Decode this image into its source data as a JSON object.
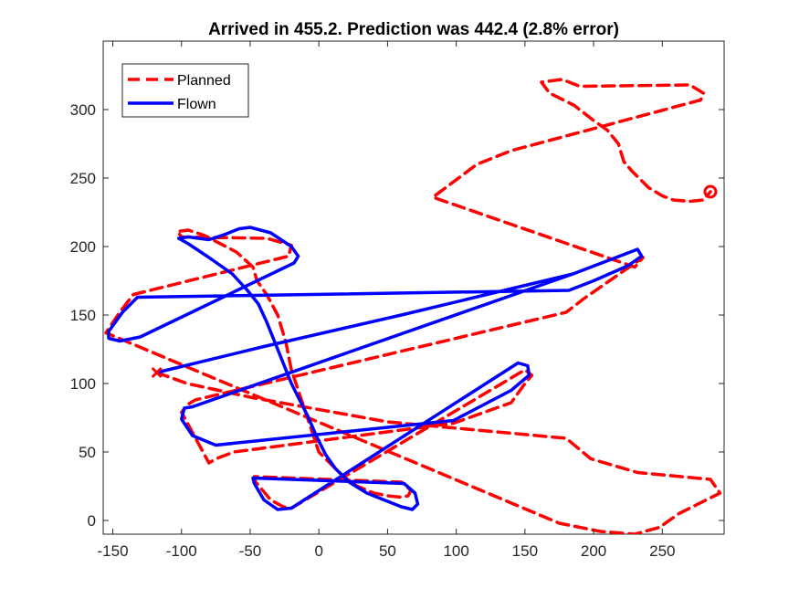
{
  "chart_data": {
    "type": "line",
    "title": "Arrived in 455.2.  Prediction was 442.4 (2.8% error)",
    "xlim": [
      -157,
      295
    ],
    "ylim": [
      -10,
      350
    ],
    "xticks": [
      -150,
      -100,
      -50,
      0,
      50,
      100,
      150,
      200,
      250
    ],
    "yticks": [
      0,
      50,
      100,
      150,
      200,
      250,
      300
    ],
    "legend_placement": "top-left",
    "grid": false,
    "series": [
      {
        "name": "Planned",
        "color": "#ff0000",
        "style": "dashed",
        "points": [
          [
            -118,
            108
          ],
          [
            -96,
            100
          ],
          [
            -50,
            90
          ],
          [
            50,
            72
          ],
          [
            180,
            60
          ],
          [
            198,
            45
          ],
          [
            232,
            35
          ],
          [
            285,
            30
          ],
          [
            292,
            20
          ],
          [
            262,
            5
          ],
          [
            248,
            -5
          ],
          [
            230,
            -10
          ],
          [
            205,
            -8
          ],
          [
            175,
            -2
          ],
          [
            -155,
            137
          ],
          [
            -145,
            152
          ],
          [
            -135,
            165
          ],
          [
            -22,
            193
          ],
          [
            -20,
            201
          ],
          [
            -38,
            206
          ],
          [
            -100,
            207
          ],
          [
            -103,
            211
          ],
          [
            -95,
            212
          ],
          [
            -83,
            208
          ],
          [
            -60,
            196
          ],
          [
            -48,
            185
          ],
          [
            -45,
            175
          ],
          [
            -38,
            165
          ],
          [
            -30,
            150
          ],
          [
            -24,
            130
          ],
          [
            -20,
            110
          ],
          [
            -15,
            95
          ],
          [
            -10,
            80
          ],
          [
            -5,
            65
          ],
          [
            0,
            50
          ],
          [
            10,
            40
          ],
          [
            18,
            32
          ],
          [
            28,
            25
          ],
          [
            40,
            20
          ],
          [
            50,
            18
          ],
          [
            60,
            17
          ],
          [
            65,
            18
          ],
          [
            67,
            22
          ],
          [
            60,
            28
          ],
          [
            -47,
            32
          ],
          [
            -46,
            28
          ],
          [
            -35,
            15
          ],
          [
            -26,
            10
          ],
          [
            -20,
            9
          ],
          [
            150,
            110
          ],
          [
            155,
            106
          ],
          [
            150,
            100
          ],
          [
            140,
            86
          ],
          [
            98,
            71
          ],
          [
            -62,
            50
          ],
          [
            -75,
            45
          ],
          [
            -80,
            42
          ],
          [
            -100,
            79
          ],
          [
            -95,
            85
          ],
          [
            -90,
            88
          ],
          [
            180,
            152
          ],
          [
            193,
            162
          ],
          [
            236,
            192
          ],
          [
            230,
            185
          ],
          [
            83,
            236
          ],
          [
            95,
            245
          ],
          [
            115,
            260
          ],
          [
            140,
            270
          ],
          [
            278,
            307
          ],
          [
            280,
            312
          ],
          [
            270,
            318
          ],
          [
            190,
            317
          ],
          [
            177,
            322
          ],
          [
            162,
            320
          ],
          [
            168,
            312
          ],
          [
            186,
            303
          ],
          [
            200,
            292
          ],
          [
            210,
            285
          ],
          [
            218,
            275
          ],
          [
            222,
            262
          ],
          [
            228,
            255
          ],
          [
            240,
            243
          ],
          [
            250,
            237
          ],
          [
            258,
            234
          ],
          [
            270,
            233
          ],
          [
            280,
            234
          ],
          [
            285,
            240
          ]
        ]
      },
      {
        "name": "Flown",
        "color": "#0000ff",
        "style": "solid",
        "points": [
          [
            -118,
            108
          ],
          [
            -40,
            127
          ],
          [
            60,
            150
          ],
          [
            185,
            180
          ],
          [
            232,
            198
          ],
          [
            235,
            193
          ],
          [
            225,
            186
          ],
          [
            200,
            175
          ],
          [
            182,
            168
          ],
          [
            -132,
            163
          ],
          [
            -143,
            152
          ],
          [
            -153,
            138
          ],
          [
            -153,
            133
          ],
          [
            -145,
            131
          ],
          [
            -130,
            134
          ],
          [
            -18,
            188
          ],
          [
            -15,
            193
          ],
          [
            -20,
            200
          ],
          [
            -35,
            210
          ],
          [
            -50,
            214
          ],
          [
            -58,
            213
          ],
          [
            -68,
            209
          ],
          [
            -80,
            205
          ],
          [
            -95,
            207
          ],
          [
            -102,
            206
          ],
          [
            -95,
            202
          ],
          [
            -80,
            192
          ],
          [
            -63,
            180
          ],
          [
            -52,
            168
          ],
          [
            -44,
            158
          ],
          [
            -38,
            145
          ],
          [
            -32,
            130
          ],
          [
            -26,
            115
          ],
          [
            -20,
            100
          ],
          [
            -14,
            88
          ],
          [
            -8,
            76
          ],
          [
            -2,
            62
          ],
          [
            5,
            48
          ],
          [
            12,
            38
          ],
          [
            22,
            28
          ],
          [
            35,
            20
          ],
          [
            50,
            14
          ],
          [
            60,
            10
          ],
          [
            68,
            8
          ],
          [
            72,
            12
          ],
          [
            70,
            20
          ],
          [
            62,
            27
          ],
          [
            -48,
            31
          ],
          [
            -47,
            27
          ],
          [
            -40,
            15
          ],
          [
            -30,
            8
          ],
          [
            -20,
            9
          ],
          [
            145,
            115
          ],
          [
            152,
            113
          ],
          [
            153,
            106
          ],
          [
            140,
            95
          ],
          [
            98,
            73
          ],
          [
            -75,
            55
          ],
          [
            -80,
            57
          ],
          [
            -92,
            62
          ],
          [
            -100,
            74
          ],
          [
            -98,
            82
          ],
          [
            -92,
            83
          ],
          [
            185,
            180
          ],
          [
            232,
            198
          ],
          [
            235,
            193
          ],
          [
            225,
            186
          ],
          [
            200,
            175
          ],
          [
            182,
            168
          ],
          [
            -132,
            163
          ]
        ]
      }
    ]
  }
}
